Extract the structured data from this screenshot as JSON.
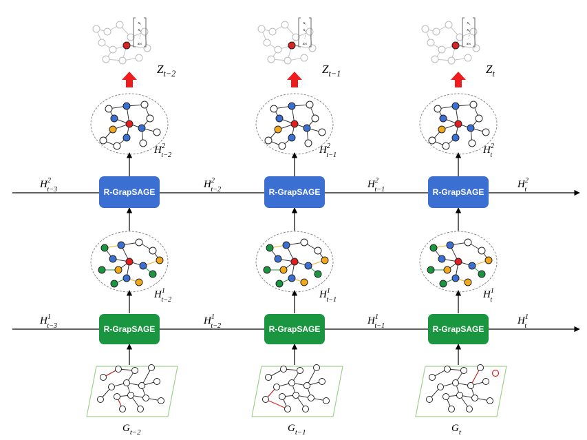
{
  "blocks": {
    "top_label": "R-GrapSAGE",
    "bottom_label": "R-GrapSAGE",
    "top_color": "#3b6fd2",
    "bottom_color": "#1a9640"
  },
  "columns": [
    {
      "id": "t-2",
      "input": {
        "base": "G",
        "sub": "t−2"
      },
      "output": {
        "base": "Z",
        "sub": "t−2"
      },
      "h1": {
        "base": "H",
        "sub": "t−2",
        "sup": "1"
      },
      "h2": {
        "base": "H",
        "sub": "t−2",
        "sup": "2"
      }
    },
    {
      "id": "t-1",
      "input": {
        "base": "G",
        "sub": "t−1"
      },
      "output": {
        "base": "Z",
        "sub": "t−1"
      },
      "h1": {
        "base": "H",
        "sub": "t−1",
        "sup": "1"
      },
      "h2": {
        "base": "H",
        "sub": "t−1",
        "sup": "2"
      }
    },
    {
      "id": "t",
      "input": {
        "base": "G",
        "sub": "t"
      },
      "output": {
        "base": "Z",
        "sub": "t"
      },
      "h1": {
        "base": "H",
        "sub": "t",
        "sup": "1"
      },
      "h2": {
        "base": "H",
        "sub": "t",
        "sup": "2"
      }
    }
  ],
  "flow_labels": {
    "row2": [
      {
        "base": "H",
        "sub": "t−3",
        "sup": "2"
      },
      {
        "base": "H",
        "sub": "t−2",
        "sup": "2"
      },
      {
        "base": "H",
        "sub": "t−1",
        "sup": "2"
      },
      {
        "base": "H",
        "sub": "t",
        "sup": "2"
      }
    ],
    "row1": [
      {
        "base": "H",
        "sub": "t−3",
        "sup": "1"
      },
      {
        "base": "H",
        "sub": "t−2",
        "sup": "1"
      },
      {
        "base": "H",
        "sub": "t−1",
        "sup": "1"
      },
      {
        "base": "H",
        "sub": "t",
        "sup": "1"
      }
    ]
  },
  "vector_labels": [
    "x₁",
    "x₂",
    "⋮",
    "xₘ"
  ],
  "colors": {
    "focus_node": "#e02020",
    "neighbor_blue": "#3b6fd2",
    "neighbor_orange": "#f2a81d",
    "neighbor_green": "#1a9640",
    "output_arrow": "#ee1c1c",
    "graph_box": "#9fd08a"
  }
}
